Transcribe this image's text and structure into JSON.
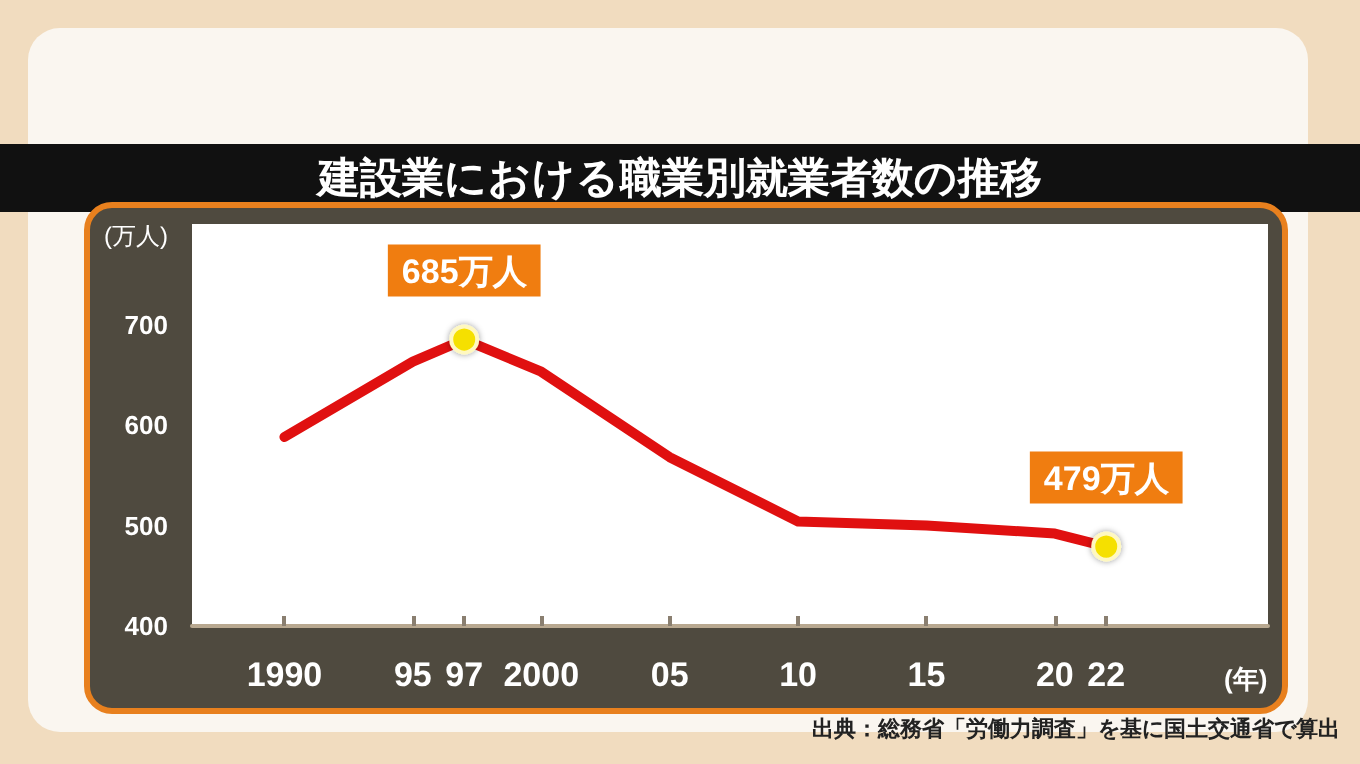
{
  "chart_data": {
    "type": "line",
    "title": "建設業における職業別就業者数の推移",
    "xlabel": "(年)",
    "ylabel": "(万人)",
    "x": [
      1990,
      1995,
      1997,
      2000,
      2005,
      2010,
      2015,
      2020,
      2022
    ],
    "series": [
      {
        "color": "#e01010",
        "values": [
          588,
          663,
          685,
          653,
          568,
          504,
          500,
          492,
          479
        ]
      }
    ],
    "xlim": [
      1986.4,
      2028.3
    ],
    "xticks": [
      1990,
      {
        "value": 1995,
        "label": "95"
      },
      {
        "value": 1997,
        "label": "97"
      },
      2000,
      {
        "value": 2005,
        "label": "05"
      },
      {
        "value": 2010,
        "label": "10"
      },
      {
        "value": 2015,
        "label": "15"
      },
      {
        "value": 2020,
        "label": "20"
      },
      {
        "value": 2022,
        "label": "22"
      }
    ],
    "ylim": [
      400,
      800
    ],
    "yticks": [
      400,
      500,
      600,
      700
    ],
    "grid": false,
    "marker": "none",
    "line_style": "solid",
    "annotations": [
      {
        "text": "685万人",
        "x": 1997,
        "y": 685
      },
      {
        "text": "479万人",
        "x": 2022,
        "y": 479
      },
      "出典：総務省「労働力調査」を基に国土交通省で算出"
    ]
  }
}
